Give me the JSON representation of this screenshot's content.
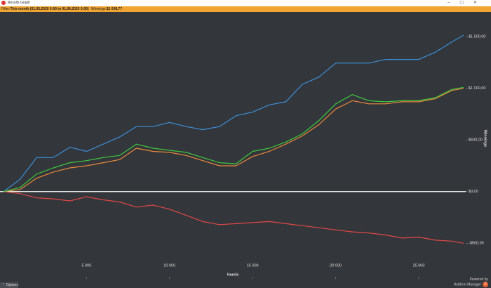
{
  "window": {
    "title": "Results Graph"
  },
  "filter": {
    "label": "Filter:",
    "text": "This month (01.05.2020 0:00 to 01.06.2020 0:00)",
    "winnings_label": "Winnings:",
    "winnings": "$1 008,77"
  },
  "footer": {
    "options": "Options",
    "powered": "Powered by",
    "brand": "Hold'em Manager",
    "version": "2"
  },
  "chart_data": {
    "type": "line",
    "xlabel": "Hands",
    "ylabel": "Winnings",
    "x": [
      0,
      1000,
      2000,
      3000,
      4000,
      5000,
      6000,
      7000,
      8000,
      9000,
      10000,
      11000,
      12000,
      13000,
      14000,
      15000,
      16000,
      17000,
      18000,
      19000,
      20000,
      21000,
      22000,
      23000,
      24000,
      25000,
      26000,
      27000,
      27700
    ],
    "series": [
      {
        "name": "Net Won",
        "color": "#3ec83e",
        "values": [
          0,
          40,
          170,
          230,
          280,
          300,
          330,
          350,
          460,
          420,
          400,
          380,
          330,
          280,
          270,
          390,
          420,
          480,
          560,
          690,
          850,
          940,
          880,
          870,
          880,
          880,
          910,
          990,
          1010
        ]
      },
      {
        "name": "Non Showdown",
        "color": "#e04848",
        "values": [
          0,
          -20,
          -60,
          -70,
          -90,
          -50,
          -80,
          -100,
          -150,
          -130,
          -170,
          -230,
          -290,
          -320,
          -310,
          -300,
          -290,
          -310,
          -330,
          -350,
          -370,
          -390,
          -400,
          -420,
          -450,
          -440,
          -470,
          -480,
          -500
        ]
      },
      {
        "name": "Showdown",
        "color": "#3d8fd6",
        "values": [
          0,
          120,
          330,
          330,
          430,
          390,
          460,
          530,
          630,
          630,
          670,
          630,
          600,
          630,
          735,
          770,
          840,
          870,
          1040,
          1110,
          1245,
          1245,
          1245,
          1280,
          1280,
          1280,
          1350,
          1450,
          1515
        ]
      },
      {
        "name": "All-In EV",
        "color": "#e8893a",
        "values": [
          0,
          20,
          130,
          190,
          230,
          250,
          280,
          310,
          420,
          390,
          380,
          350,
          300,
          250,
          250,
          340,
          390,
          460,
          540,
          650,
          800,
          880,
          850,
          850,
          870,
          870,
          900,
          980,
          1000
        ]
      }
    ],
    "xlim": [
      -210,
      27830
    ],
    "ylim": [
      -845,
      1740
    ],
    "xticks": [
      {
        "value": 5000,
        "label": "5 000"
      },
      {
        "value": 10000,
        "label": "10 000"
      },
      {
        "value": 15000,
        "label": "15 000"
      },
      {
        "value": 20000,
        "label": "20 000"
      },
      {
        "value": 25000,
        "label": "25 000"
      }
    ],
    "yticks": [
      {
        "value": -500,
        "label": "-$500,00"
      },
      {
        "value": 0,
        "label": "$0,00"
      },
      {
        "value": 500,
        "label": "$500,00"
      },
      {
        "value": 1000,
        "label": "$1 000,00"
      },
      {
        "value": 1500,
        "label": "$1 500,00"
      }
    ],
    "zero_line": true,
    "legend": "bottom"
  }
}
